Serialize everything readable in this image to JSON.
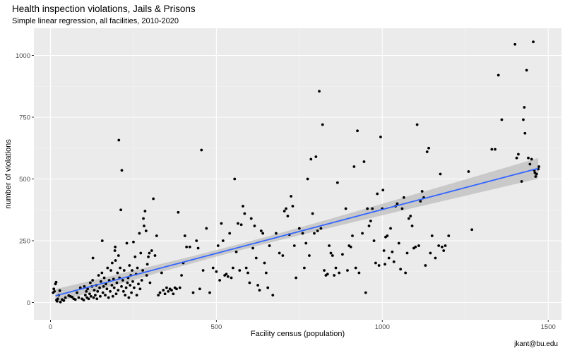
{
  "colors": {
    "panel": "#EBEBEB",
    "grid_major": "#FFFFFF",
    "point": "#000000",
    "fit_line": "#3366FF",
    "ribbon": "#BEBEBE"
  },
  "caption": "jkant@bu.edu",
  "chart_data": {
    "type": "scatter",
    "title": "Health inspection violations, Jails & Prisons",
    "subtitle": "Simple linear regression, all facilities, 2010-2020",
    "xlabel": "Facility census (population)",
    "ylabel": "number of violations",
    "xlim": [
      -50,
      1540
    ],
    "ylim": [
      -70,
      1110
    ],
    "x_ticks": [
      0,
      500,
      1000,
      1500
    ],
    "y_ticks": [
      0,
      250,
      500,
      750,
      1000
    ],
    "x_tick_labels": [
      "0",
      "500",
      "1000",
      "1500"
    ],
    "y_tick_labels": [
      "0",
      "250",
      "500",
      "750",
      "1000"
    ],
    "grid": true,
    "fit": {
      "method": "linear regression",
      "x_start": 15,
      "y_start": 27,
      "x_end": 1470,
      "y_end": 543,
      "ci_half_width_ends": 42,
      "ci_half_width_center": 13,
      "x_center": 560
    },
    "points": [
      [
        8,
        40
      ],
      [
        10,
        55
      ],
      [
        12,
        45
      ],
      [
        15,
        75
      ],
      [
        17,
        82
      ],
      [
        18,
        10
      ],
      [
        20,
        5
      ],
      [
        22,
        15
      ],
      [
        25,
        30
      ],
      [
        28,
        48
      ],
      [
        30,
        2
      ],
      [
        35,
        12
      ],
      [
        40,
        8
      ],
      [
        45,
        20
      ],
      [
        55,
        28
      ],
      [
        60,
        25
      ],
      [
        65,
        22
      ],
      [
        70,
        15
      ],
      [
        75,
        12
      ],
      [
        80,
        40
      ],
      [
        85,
        20
      ],
      [
        90,
        60
      ],
      [
        95,
        15
      ],
      [
        100,
        10
      ],
      [
        102,
        65
      ],
      [
        105,
        30
      ],
      [
        108,
        45
      ],
      [
        110,
        20
      ],
      [
        112,
        55
      ],
      [
        115,
        15
      ],
      [
        118,
        35
      ],
      [
        120,
        80
      ],
      [
        122,
        25
      ],
      [
        125,
        65
      ],
      [
        127,
        90
      ],
      [
        128,
        180
      ],
      [
        130,
        20
      ],
      [
        132,
        50
      ],
      [
        135,
        30
      ],
      [
        138,
        70
      ],
      [
        140,
        15
      ],
      [
        142,
        45
      ],
      [
        145,
        110
      ],
      [
        148,
        60
      ],
      [
        150,
        25
      ],
      [
        152,
        85
      ],
      [
        155,
        120
      ],
      [
        156,
        250
      ],
      [
        158,
        40
      ],
      [
        160,
        65
      ],
      [
        162,
        100
      ],
      [
        165,
        30
      ],
      [
        167,
        75
      ],
      [
        170,
        55
      ],
      [
        172,
        140
      ],
      [
        175,
        20
      ],
      [
        177,
        90
      ],
      [
        180,
        45
      ],
      [
        182,
        130
      ],
      [
        185,
        70
      ],
      [
        186,
        160
      ],
      [
        188,
        25
      ],
      [
        190,
        95
      ],
      [
        192,
        60
      ],
      [
        194,
        210
      ],
      [
        195,
        225
      ],
      [
        196,
        170
      ],
      [
        198,
        35
      ],
      [
        200,
        80
      ],
      [
        202,
        120
      ],
      [
        204,
        50
      ],
      [
        205,
        190
      ],
      [
        206,
        657
      ],
      [
        208,
        100
      ],
      [
        210,
        140
      ],
      [
        212,
        375
      ],
      [
        214,
        65
      ],
      [
        215,
        535
      ],
      [
        218,
        90
      ],
      [
        220,
        45
      ],
      [
        222,
        130
      ],
      [
        225,
        30
      ],
      [
        228,
        60
      ],
      [
        230,
        240
      ],
      [
        232,
        80
      ],
      [
        234,
        100
      ],
      [
        236,
        20
      ],
      [
        238,
        150
      ],
      [
        240,
        70
      ],
      [
        242,
        110
      ],
      [
        244,
        40
      ],
      [
        246,
        130
      ],
      [
        248,
        85
      ],
      [
        250,
        245
      ],
      [
        252,
        60
      ],
      [
        255,
        185
      ],
      [
        258,
        115
      ],
      [
        260,
        30
      ],
      [
        262,
        140
      ],
      [
        265,
        75
      ],
      [
        268,
        280
      ],
      [
        270,
        55
      ],
      [
        272,
        200
      ],
      [
        275,
        90
      ],
      [
        278,
        130
      ],
      [
        280,
        340
      ],
      [
        282,
        310
      ],
      [
        285,
        370
      ],
      [
        288,
        290
      ],
      [
        290,
        110
      ],
      [
        292,
        155
      ],
      [
        295,
        185
      ],
      [
        298,
        200
      ],
      [
        300,
        80
      ],
      [
        305,
        210
      ],
      [
        310,
        420
      ],
      [
        315,
        190
      ],
      [
        320,
        270
      ],
      [
        325,
        30
      ],
      [
        330,
        40
      ],
      [
        335,
        120
      ],
      [
        340,
        50
      ],
      [
        345,
        35
      ],
      [
        350,
        60
      ],
      [
        355,
        45
      ],
      [
        360,
        55
      ],
      [
        365,
        50
      ],
      [
        370,
        35
      ],
      [
        375,
        60
      ],
      [
        380,
        55
      ],
      [
        385,
        365
      ],
      [
        390,
        60
      ],
      [
        395,
        110
      ],
      [
        400,
        160
      ],
      [
        405,
        270
      ],
      [
        410,
        225
      ],
      [
        420,
        225
      ],
      [
        430,
        40
      ],
      [
        440,
        250
      ],
      [
        445,
        220
      ],
      [
        450,
        55
      ],
      [
        455,
        617
      ],
      [
        460,
        130
      ],
      [
        470,
        300
      ],
      [
        480,
        40
      ],
      [
        490,
        140
      ],
      [
        500,
        125
      ],
      [
        505,
        230
      ],
      [
        510,
        90
      ],
      [
        515,
        320
      ],
      [
        520,
        250
      ],
      [
        525,
        110
      ],
      [
        530,
        115
      ],
      [
        535,
        105
      ],
      [
        540,
        280
      ],
      [
        545,
        100
      ],
      [
        550,
        140
      ],
      [
        555,
        500
      ],
      [
        560,
        205
      ],
      [
        565,
        320
      ],
      [
        570,
        130
      ],
      [
        575,
        315
      ],
      [
        580,
        390
      ],
      [
        585,
        360
      ],
      [
        590,
        140
      ],
      [
        595,
        120
      ],
      [
        600,
        80
      ],
      [
        605,
        340
      ],
      [
        610,
        220
      ],
      [
        615,
        310
      ],
      [
        620,
        180
      ],
      [
        625,
        70
      ],
      [
        630,
        50
      ],
      [
        635,
        290
      ],
      [
        640,
        280
      ],
      [
        645,
        160
      ],
      [
        650,
        120
      ],
      [
        655,
        60
      ],
      [
        660,
        230
      ],
      [
        670,
        30
      ],
      [
        680,
        280
      ],
      [
        690,
        200
      ],
      [
        700,
        190
      ],
      [
        705,
        370
      ],
      [
        710,
        380
      ],
      [
        715,
        350
      ],
      [
        720,
        275
      ],
      [
        725,
        430
      ],
      [
        730,
        390
      ],
      [
        735,
        230
      ],
      [
        740,
        100
      ],
      [
        750,
        300
      ],
      [
        760,
        280
      ],
      [
        765,
        140
      ],
      [
        770,
        240
      ],
      [
        775,
        500
      ],
      [
        780,
        190
      ],
      [
        785,
        580
      ],
      [
        790,
        360
      ],
      [
        795,
        280
      ],
      [
        800,
        590
      ],
      [
        805,
        290
      ],
      [
        810,
        855
      ],
      [
        815,
        300
      ],
      [
        820,
        720
      ],
      [
        825,
        130
      ],
      [
        830,
        110
      ],
      [
        835,
        115
      ],
      [
        840,
        230
      ],
      [
        845,
        200
      ],
      [
        850,
        190
      ],
      [
        855,
        110
      ],
      [
        860,
        140
      ],
      [
        865,
        485
      ],
      [
        870,
        120
      ],
      [
        880,
        195
      ],
      [
        890,
        380
      ],
      [
        895,
        130
      ],
      [
        900,
        230
      ],
      [
        905,
        225
      ],
      [
        910,
        270
      ],
      [
        915,
        550
      ],
      [
        920,
        140
      ],
      [
        925,
        695
      ],
      [
        930,
        120
      ],
      [
        940,
        280
      ],
      [
        945,
        570
      ],
      [
        950,
        40
      ],
      [
        955,
        380
      ],
      [
        960,
        310
      ],
      [
        965,
        330
      ],
      [
        970,
        380
      ],
      [
        975,
        250
      ],
      [
        980,
        160
      ],
      [
        985,
        440
      ],
      [
        990,
        150
      ],
      [
        995,
        670
      ],
      [
        1000,
        380
      ],
      [
        1002,
        455
      ],
      [
        1005,
        210
      ],
      [
        1008,
        155
      ],
      [
        1010,
        265
      ],
      [
        1015,
        270
      ],
      [
        1020,
        180
      ],
      [
        1025,
        300
      ],
      [
        1030,
        205
      ],
      [
        1035,
        165
      ],
      [
        1040,
        390
      ],
      [
        1045,
        400
      ],
      [
        1050,
        240
      ],
      [
        1055,
        135
      ],
      [
        1060,
        380
      ],
      [
        1065,
        425
      ],
      [
        1070,
        120
      ],
      [
        1075,
        200
      ],
      [
        1080,
        340
      ],
      [
        1085,
        350
      ],
      [
        1090,
        310
      ],
      [
        1095,
        220
      ],
      [
        1100,
        225
      ],
      [
        1105,
        720
      ],
      [
        1110,
        230
      ],
      [
        1115,
        410
      ],
      [
        1120,
        450
      ],
      [
        1125,
        425
      ],
      [
        1130,
        150
      ],
      [
        1135,
        610
      ],
      [
        1140,
        625
      ],
      [
        1145,
        200
      ],
      [
        1150,
        270
      ],
      [
        1160,
        180
      ],
      [
        1170,
        230
      ],
      [
        1175,
        520
      ],
      [
        1180,
        225
      ],
      [
        1185,
        210
      ],
      [
        1190,
        230
      ],
      [
        1200,
        270
      ],
      [
        1260,
        530
      ],
      [
        1270,
        295
      ],
      [
        1330,
        620
      ],
      [
        1340,
        620
      ],
      [
        1350,
        920
      ],
      [
        1360,
        740
      ],
      [
        1400,
        1045
      ],
      [
        1405,
        585
      ],
      [
        1410,
        600
      ],
      [
        1420,
        490
      ],
      [
        1425,
        740
      ],
      [
        1428,
        790
      ],
      [
        1430,
        685
      ],
      [
        1435,
        940
      ],
      [
        1440,
        585
      ],
      [
        1445,
        560
      ],
      [
        1450,
        580
      ],
      [
        1455,
        1055
      ],
      [
        1458,
        535
      ],
      [
        1460,
        525
      ],
      [
        1462,
        510
      ],
      [
        1465,
        520
      ],
      [
        1470,
        540
      ],
      [
        1472,
        550
      ]
    ]
  }
}
